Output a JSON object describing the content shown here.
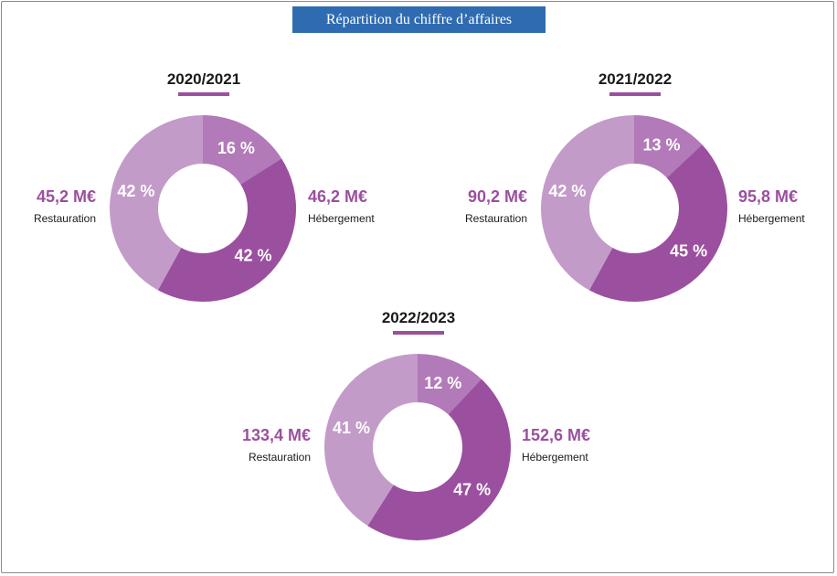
{
  "colors": {
    "title_bg": "#2f6bb0",
    "accent": "#9b4f9f",
    "autre": "#b27ab8",
    "hebergement": "#9b4f9f",
    "restauration": "#c39bc8"
  },
  "title": "Répartition du chiffre d’affaires",
  "chart_data": [
    {
      "type": "pie",
      "title": "2020/2021",
      "segments": [
        {
          "label": "16 %",
          "value": 16,
          "color_key": "autre"
        },
        {
          "label": "42 %",
          "value": 42,
          "color_key": "hebergement"
        },
        {
          "label": "42 %",
          "value": 42,
          "color_key": "restauration"
        }
      ],
      "hebergement": {
        "amount": "46,2 M€",
        "label": "Hébergement"
      },
      "restauration": {
        "amount": "45,2 M€",
        "label": "Restauration"
      }
    },
    {
      "type": "pie",
      "title": "2021/2022",
      "segments": [
        {
          "label": "13 %",
          "value": 13,
          "color_key": "autre"
        },
        {
          "label": "45 %",
          "value": 45,
          "color_key": "hebergement"
        },
        {
          "label": "42 %",
          "value": 42,
          "color_key": "restauration"
        }
      ],
      "hebergement": {
        "amount": "95,8 M€",
        "label": "Hébergement"
      },
      "restauration": {
        "amount": "90,2 M€",
        "label": "Restauration"
      }
    },
    {
      "type": "pie",
      "title": "2022/2023",
      "segments": [
        {
          "label": "12 %",
          "value": 12,
          "color_key": "autre"
        },
        {
          "label": "47 %",
          "value": 47,
          "color_key": "hebergement"
        },
        {
          "label": "41 %",
          "value": 41,
          "color_key": "restauration"
        }
      ],
      "hebergement": {
        "amount": "152,6 M€",
        "label": "Hébergement"
      },
      "restauration": {
        "amount": "133,4 M€",
        "label": "Restauration"
      }
    }
  ]
}
